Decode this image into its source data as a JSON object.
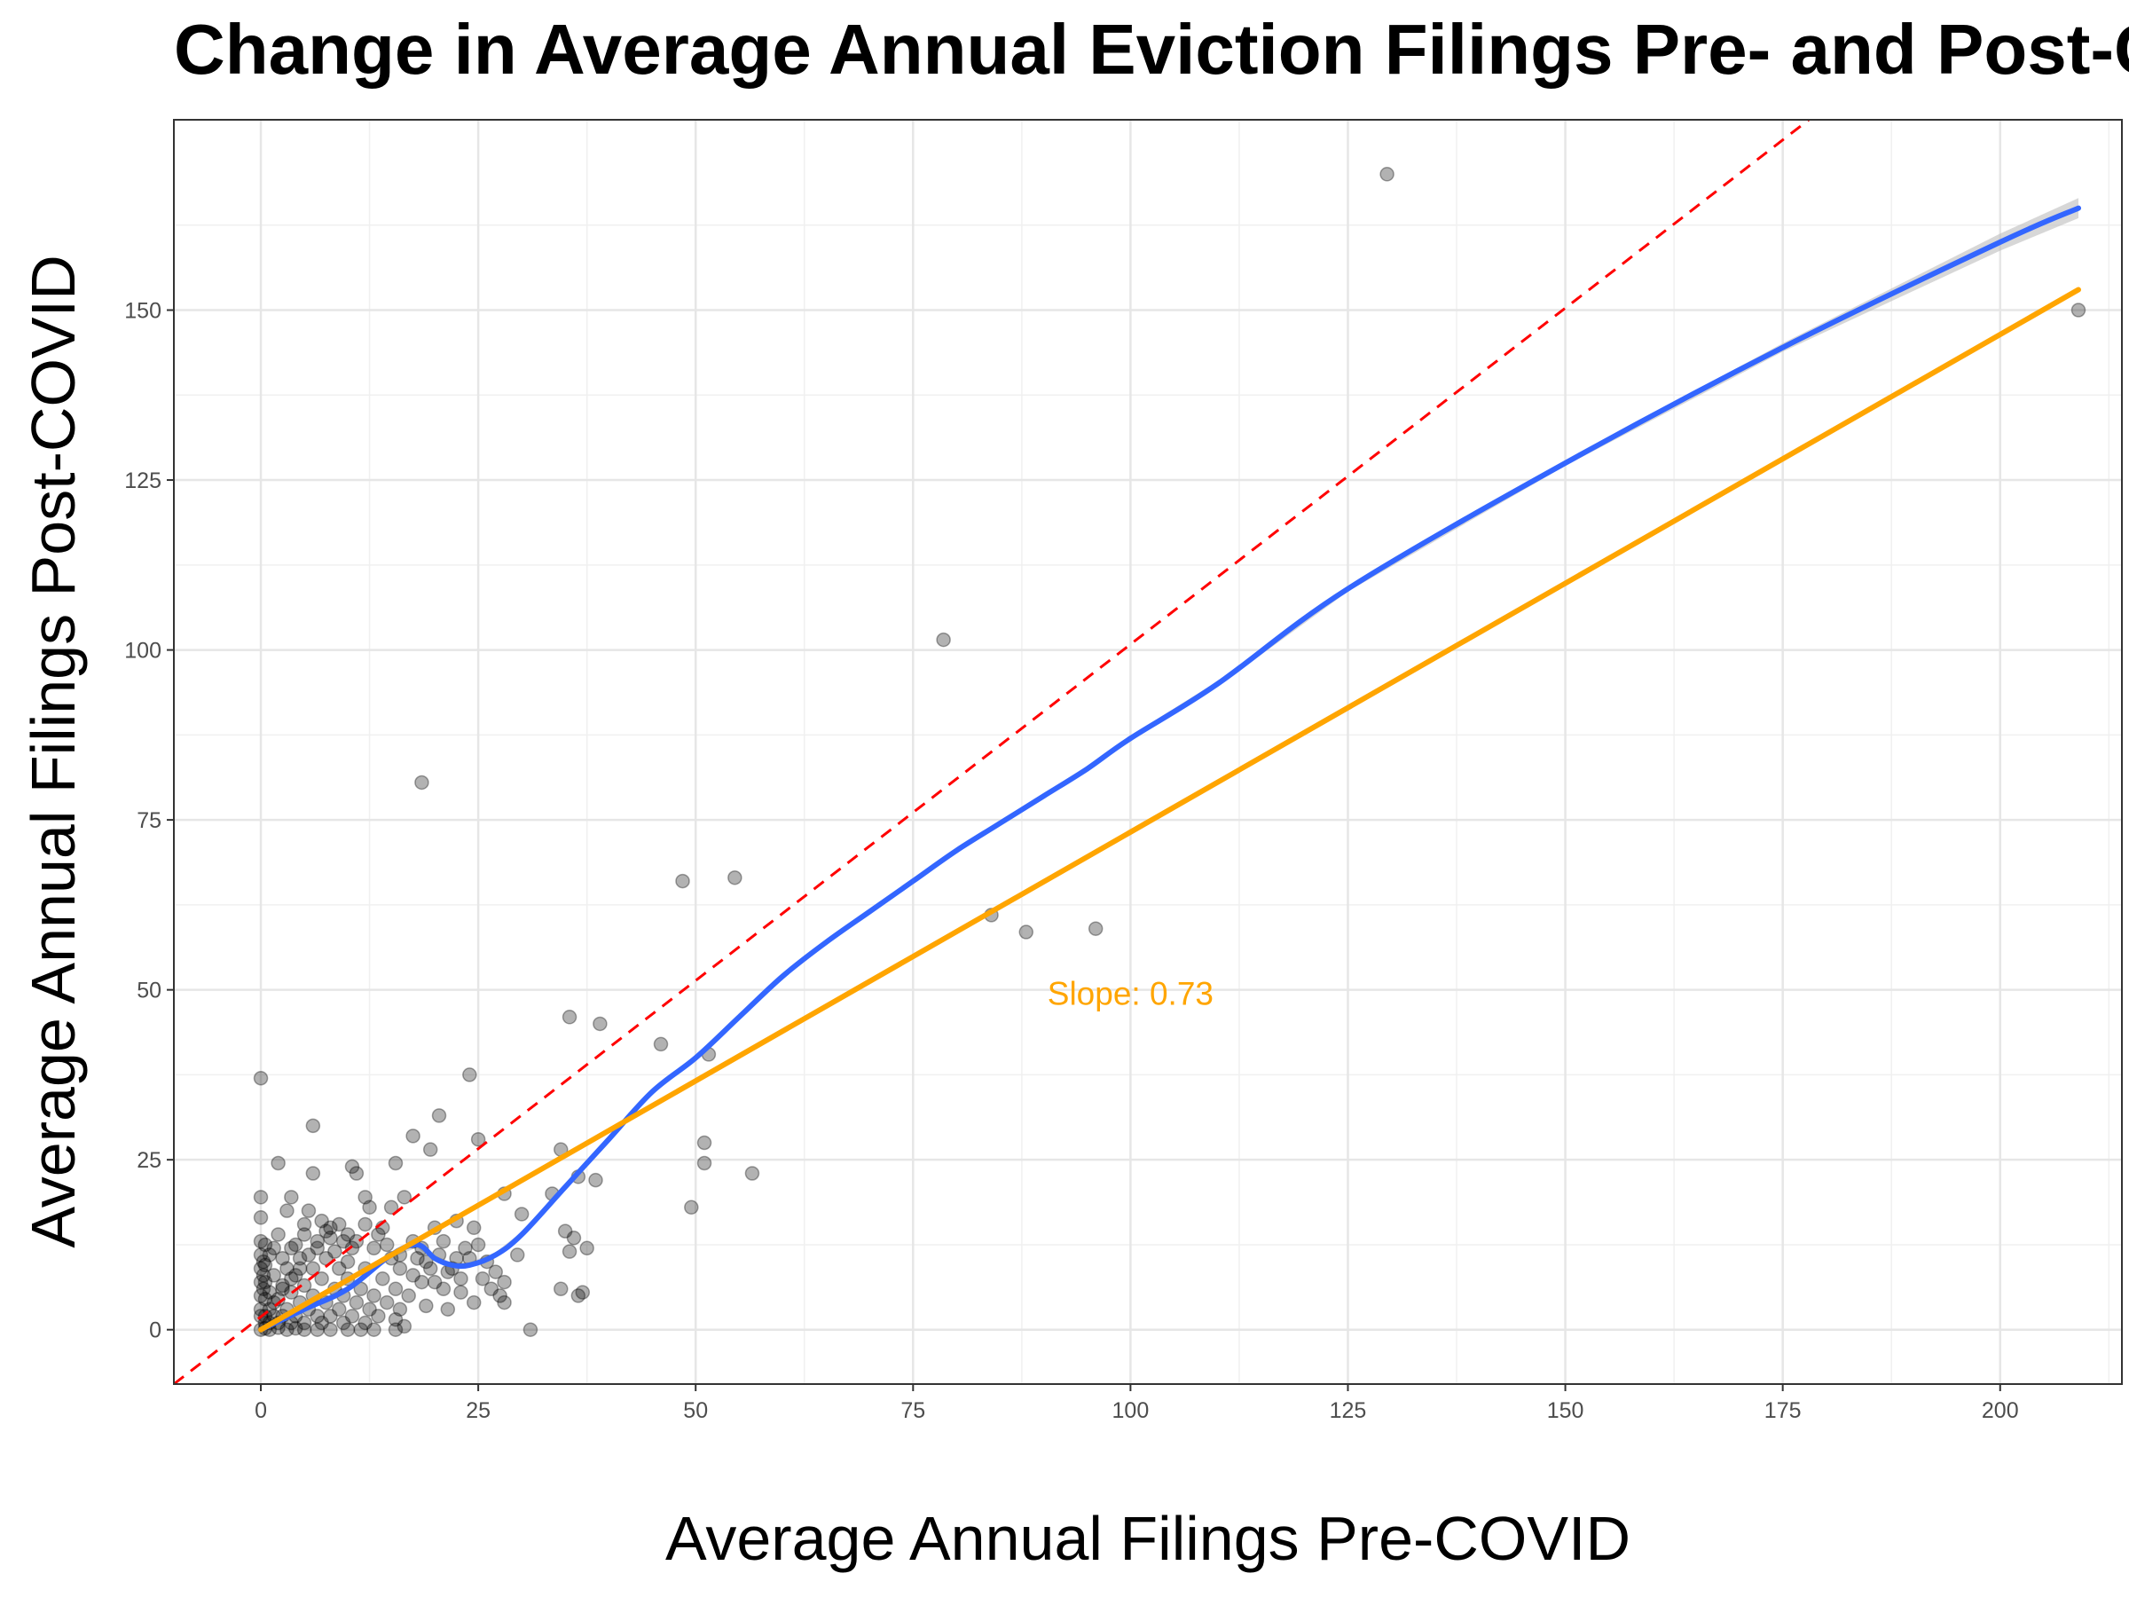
{
  "chart_data": {
    "type": "scatter",
    "title": "Change in Average Annual Eviction Filings Pre- and Post-COVID",
    "xlabel": "Average Annual Filings Pre-COVID",
    "ylabel": "Average Annual Filings Post-COVID",
    "xlim": [
      -10,
      214
    ],
    "ylim": [
      -8,
      178
    ],
    "x_ticks": [
      0,
      25,
      50,
      75,
      100,
      125,
      150,
      175,
      200
    ],
    "y_ticks": [
      0,
      25,
      50,
      75,
      100,
      125,
      150
    ],
    "grid": true,
    "theme": "bw",
    "colors": {
      "points": "#000000",
      "loess": "#3366ff",
      "linear": "#ffa500",
      "identity": "#ff0000",
      "loess_band": "#bdbdbd"
    },
    "annotation": {
      "text": "Slope: 0.73",
      "x": 100,
      "y": 49.5
    },
    "series": [
      {
        "type": "points",
        "values": [
          [
            129.5,
            170
          ],
          [
            209,
            150
          ],
          [
            78.5,
            101.5
          ],
          [
            18.5,
            80.5
          ],
          [
            48.5,
            66
          ],
          [
            54.5,
            66.5
          ],
          [
            84,
            61
          ],
          [
            88,
            58.5
          ],
          [
            96,
            59
          ],
          [
            35.5,
            46
          ],
          [
            39,
            45
          ],
          [
            46,
            42
          ],
          [
            51.5,
            40.5
          ],
          [
            0,
            37
          ],
          [
            24,
            37.5
          ],
          [
            6,
            30
          ],
          [
            20.5,
            31.5
          ],
          [
            25,
            28
          ],
          [
            17.5,
            28.5
          ],
          [
            19.5,
            26.5
          ],
          [
            34.5,
            26.5
          ],
          [
            51,
            27.5
          ],
          [
            2,
            24.5
          ],
          [
            10.5,
            24
          ],
          [
            15.5,
            24.5
          ],
          [
            51,
            24.5
          ],
          [
            56.5,
            23
          ],
          [
            6,
            23
          ],
          [
            11,
            23
          ],
          [
            36.5,
            22.5
          ],
          [
            38.5,
            22
          ],
          [
            28,
            20
          ],
          [
            33.5,
            20
          ],
          [
            3.5,
            19.5
          ],
          [
            12,
            19.5
          ],
          [
            16.5,
            19.5
          ],
          [
            0,
            19.5
          ],
          [
            49.5,
            18
          ],
          [
            30,
            17
          ],
          [
            3,
            17.5
          ],
          [
            5.5,
            17.5
          ],
          [
            12.5,
            18
          ],
          [
            15,
            18
          ],
          [
            0,
            16.5
          ],
          [
            22.5,
            16
          ],
          [
            9,
            15.5
          ],
          [
            14,
            15
          ],
          [
            20,
            15
          ],
          [
            24.5,
            15
          ],
          [
            35,
            14.5
          ],
          [
            36,
            13.5
          ],
          [
            2,
            14
          ],
          [
            5,
            14
          ],
          [
            8,
            13.5
          ],
          [
            11,
            13
          ],
          [
            17.5,
            13
          ],
          [
            21,
            13
          ],
          [
            25,
            12.5
          ],
          [
            37.5,
            12
          ],
          [
            0.5,
            12.5
          ],
          [
            3.5,
            12
          ],
          [
            6.5,
            12
          ],
          [
            13,
            12
          ],
          [
            23.5,
            12
          ],
          [
            35.5,
            11.5
          ],
          [
            29.5,
            11
          ],
          [
            1,
            11
          ],
          [
            4.5,
            10.5
          ],
          [
            7.5,
            10.5
          ],
          [
            10,
            10
          ],
          [
            15,
            10.5
          ],
          [
            19,
            10
          ],
          [
            26,
            10
          ],
          [
            0.5,
            9.5
          ],
          [
            3,
            9
          ],
          [
            6,
            9
          ],
          [
            9,
            9
          ],
          [
            12,
            9
          ],
          [
            16,
            9
          ],
          [
            22,
            9
          ],
          [
            27,
            8.5
          ],
          [
            1.5,
            8
          ],
          [
            4,
            8
          ],
          [
            7,
            7.5
          ],
          [
            10,
            7.5
          ],
          [
            14,
            7.5
          ],
          [
            18.5,
            7
          ],
          [
            25.5,
            7.5
          ],
          [
            28,
            7
          ],
          [
            0.5,
            7
          ],
          [
            2.5,
            6.5
          ],
          [
            5,
            6.5
          ],
          [
            8.5,
            6
          ],
          [
            11.5,
            6
          ],
          [
            15.5,
            6
          ],
          [
            21,
            6
          ],
          [
            26.5,
            6
          ],
          [
            34.5,
            6
          ],
          [
            1,
            5.5
          ],
          [
            3.5,
            5.5
          ],
          [
            6,
            5
          ],
          [
            9.5,
            5
          ],
          [
            13,
            5
          ],
          [
            17,
            5
          ],
          [
            23,
            5.5
          ],
          [
            27.5,
            5
          ],
          [
            36.5,
            5
          ],
          [
            37,
            5.5
          ],
          [
            0.5,
            4.5
          ],
          [
            2,
            4.5
          ],
          [
            4.5,
            4
          ],
          [
            7.5,
            4
          ],
          [
            11,
            4
          ],
          [
            14.5,
            4
          ],
          [
            19,
            3.5
          ],
          [
            24.5,
            4
          ],
          [
            28,
            4
          ],
          [
            1,
            3
          ],
          [
            3,
            3
          ],
          [
            5.5,
            3
          ],
          [
            9,
            3
          ],
          [
            12.5,
            3
          ],
          [
            16,
            3
          ],
          [
            21.5,
            3
          ],
          [
            0.5,
            2
          ],
          [
            1.5,
            2
          ],
          [
            2.5,
            2
          ],
          [
            4,
            2
          ],
          [
            6.5,
            2
          ],
          [
            8,
            2
          ],
          [
            10.5,
            2
          ],
          [
            13.5,
            2
          ],
          [
            15.5,
            1.5
          ],
          [
            0.5,
            1
          ],
          [
            1,
            1
          ],
          [
            2,
            1
          ],
          [
            3.5,
            1
          ],
          [
            5,
            1
          ],
          [
            7,
            1
          ],
          [
            9.5,
            1
          ],
          [
            12,
            1
          ],
          [
            16.5,
            0.5
          ],
          [
            0,
            0
          ],
          [
            0.5,
            0.2
          ],
          [
            1,
            0
          ],
          [
            2,
            0.3
          ],
          [
            3,
            0
          ],
          [
            4,
            0.2
          ],
          [
            5,
            0
          ],
          [
            6.5,
            0
          ],
          [
            8,
            0
          ],
          [
            10,
            0
          ],
          [
            11.5,
            0
          ],
          [
            13,
            0
          ],
          [
            15.5,
            0
          ],
          [
            31,
            0
          ],
          [
            0,
            3
          ],
          [
            0,
            5
          ],
          [
            0,
            7
          ],
          [
            0,
            9
          ],
          [
            0,
            11
          ],
          [
            0,
            13
          ],
          [
            0,
            2
          ],
          [
            0.3,
            6
          ],
          [
            0.3,
            8
          ],
          [
            0.3,
            10
          ],
          [
            1.5,
            4
          ],
          [
            2.5,
            6
          ],
          [
            3.5,
            7.5
          ],
          [
            4.5,
            9
          ],
          [
            5.5,
            11
          ],
          [
            6.5,
            13
          ],
          [
            7.5,
            14.5
          ],
          [
            8.5,
            11.5
          ],
          [
            9.5,
            13
          ],
          [
            10.5,
            12
          ],
          [
            1.5,
            12
          ],
          [
            2.5,
            10.5
          ],
          [
            4,
            12.5
          ],
          [
            5,
            15.5
          ],
          [
            7,
            16
          ],
          [
            8,
            15
          ],
          [
            10,
            14
          ],
          [
            12,
            15.5
          ],
          [
            13.5,
            14
          ],
          [
            14.5,
            12.5
          ],
          [
            16,
            11
          ],
          [
            18,
            10.5
          ],
          [
            19.5,
            9
          ],
          [
            20.5,
            11
          ],
          [
            22.5,
            10.5
          ],
          [
            17.5,
            8
          ],
          [
            18.5,
            12
          ],
          [
            20,
            7
          ],
          [
            23,
            7.5
          ],
          [
            21.5,
            8.5
          ],
          [
            24,
            10.5
          ]
        ]
      },
      {
        "type": "loess",
        "values": [
          [
            0,
            0
          ],
          [
            5,
            3
          ],
          [
            10,
            6
          ],
          [
            15,
            11
          ],
          [
            18,
            12.5
          ],
          [
            20,
            10.5
          ],
          [
            22,
            9.5
          ],
          [
            24,
            9.5
          ],
          [
            27,
            11
          ],
          [
            30,
            14
          ],
          [
            35,
            21
          ],
          [
            40,
            28
          ],
          [
            45,
            35
          ],
          [
            50,
            40
          ],
          [
            55,
            46
          ],
          [
            60,
            52
          ],
          [
            65,
            57
          ],
          [
            70,
            61.5
          ],
          [
            75,
            66
          ],
          [
            80,
            70.5
          ],
          [
            85,
            74.5
          ],
          [
            90,
            78.5
          ],
          [
            95,
            82.5
          ],
          [
            100,
            87
          ],
          [
            110,
            95
          ],
          [
            125,
            109
          ],
          [
            150,
            127.5
          ],
          [
            175,
            144.5
          ],
          [
            200,
            160
          ],
          [
            209,
            165
          ]
        ]
      },
      {
        "type": "linear",
        "values": [
          [
            0,
            0
          ],
          [
            209,
            153
          ]
        ]
      },
      {
        "type": "identity",
        "values": [
          [
            -10,
            -10
          ],
          [
            178,
            178
          ]
        ]
      }
    ]
  }
}
